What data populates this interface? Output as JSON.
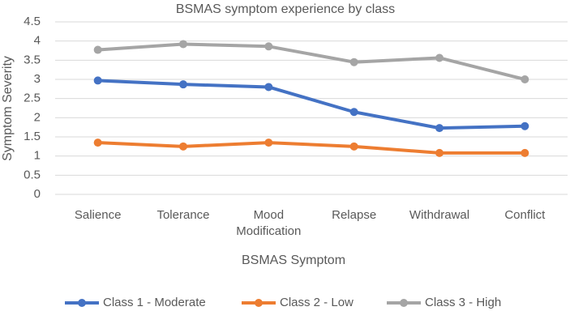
{
  "chart_data": {
    "type": "line",
    "title": "BSMAS symptom experience by class",
    "x_label": "BSMAS Symptom",
    "y_label": "Symptom Severity",
    "categories": [
      "Salience",
      "Tolerance",
      "Mood Modification",
      "Relapse",
      "Withdrawal",
      "Conflict"
    ],
    "series": [
      {
        "name": "Class 1 - Moderate",
        "color": "#4472c4",
        "values": [
          2.97,
          2.87,
          2.8,
          2.15,
          1.73,
          1.78
        ]
      },
      {
        "name": "Class 2 - Low",
        "color": "#ed7d31",
        "values": [
          1.35,
          1.25,
          1.35,
          1.25,
          1.08,
          1.08
        ]
      },
      {
        "name": "Class 3 - High",
        "color": "#a5a5a5",
        "values": [
          3.77,
          3.92,
          3.86,
          3.45,
          3.56,
          3.0
        ]
      }
    ],
    "ylim": [
      0,
      4.5
    ],
    "yticks": [
      0,
      0.5,
      1,
      1.5,
      2,
      2.5,
      3,
      3.5,
      4,
      4.5
    ],
    "grid": true,
    "legend": "bottom"
  }
}
